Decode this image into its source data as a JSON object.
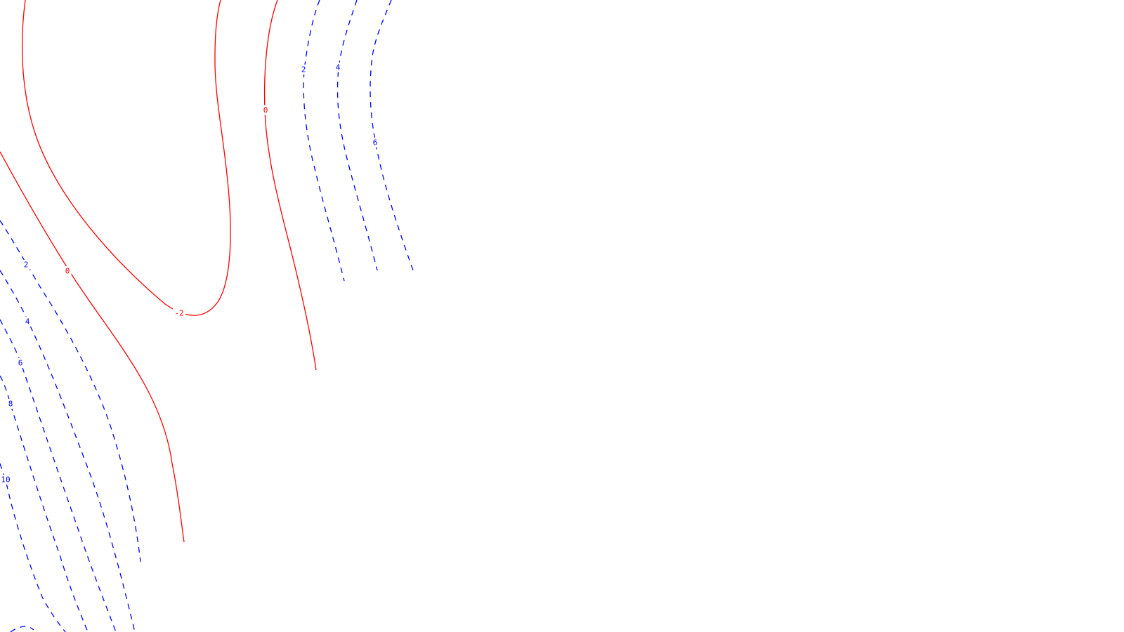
{
  "colors": {
    "positive": "#0000ff",
    "zero": "#ff0000",
    "negative": "#ff0000",
    "background": "#ffffff"
  },
  "chart_data": {
    "type": "contour",
    "title": "",
    "xlabel": "",
    "ylabel": "",
    "levels_visible": [
      -2,
      0,
      2,
      4,
      6,
      8,
      10
    ],
    "negative_and_zero_style": "solid",
    "positive_style": "dashed",
    "contours": [
      {
        "level": 0,
        "label": "0"
      },
      {
        "level": -2,
        "label": "-2"
      },
      {
        "level": 0,
        "label": "0"
      },
      {
        "level": 2,
        "label": "2"
      },
      {
        "level": 4,
        "label": "4"
      },
      {
        "level": 6,
        "label": "6"
      },
      {
        "level": 2,
        "label": "2"
      },
      {
        "level": 4,
        "label": "4"
      },
      {
        "level": 6,
        "label": "6"
      },
      {
        "level": 8,
        "label": "8"
      },
      {
        "level": 10,
        "label": "10"
      }
    ]
  }
}
